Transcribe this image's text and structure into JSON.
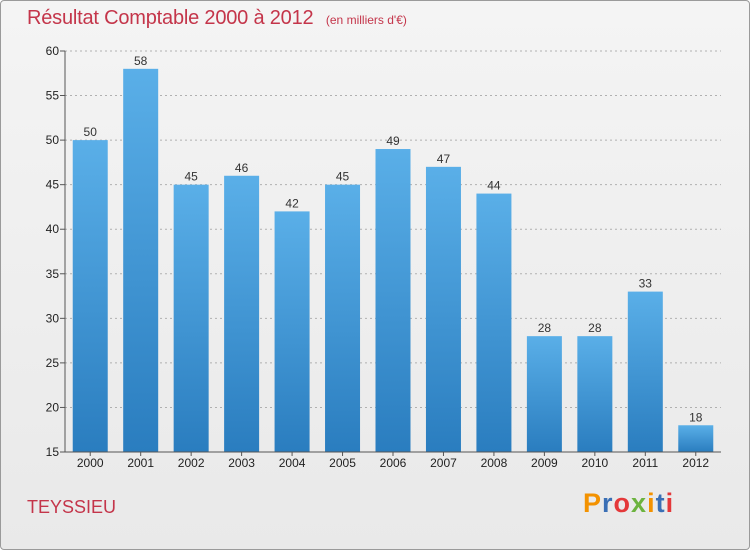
{
  "header": {
    "title": "Résultat Comptable 2000 à 2012",
    "subtitle": "(en milliers d'€)"
  },
  "footer": {
    "commune": "TEYSSIEU",
    "logo_text": "Proxiti"
  },
  "colors": {
    "title": "#c4354a",
    "bar_top": "#5aafe8",
    "bar_bottom": "#2a7dbf",
    "grid": "#b0b0b0",
    "logo_letters": [
      "#f39200",
      "#3a6fb5",
      "#e4383a",
      "#6cb33f",
      "#f39200",
      "#3a6fb5",
      "#e4383a"
    ]
  },
  "chart_data": {
    "type": "bar",
    "title": "Résultat Comptable 2000 à 2012",
    "subtitle": "(en milliers d'€)",
    "categories": [
      "2000",
      "2001",
      "2002",
      "2003",
      "2004",
      "2005",
      "2006",
      "2007",
      "2008",
      "2009",
      "2010",
      "2011",
      "2012"
    ],
    "values": [
      50,
      58,
      45,
      46,
      42,
      45,
      49,
      47,
      44,
      28,
      28,
      33,
      18
    ],
    "ylim": [
      15,
      60
    ],
    "yticks": [
      15,
      20,
      25,
      30,
      35,
      40,
      45,
      50,
      55,
      60
    ],
    "grid": true,
    "data_labels": true
  }
}
